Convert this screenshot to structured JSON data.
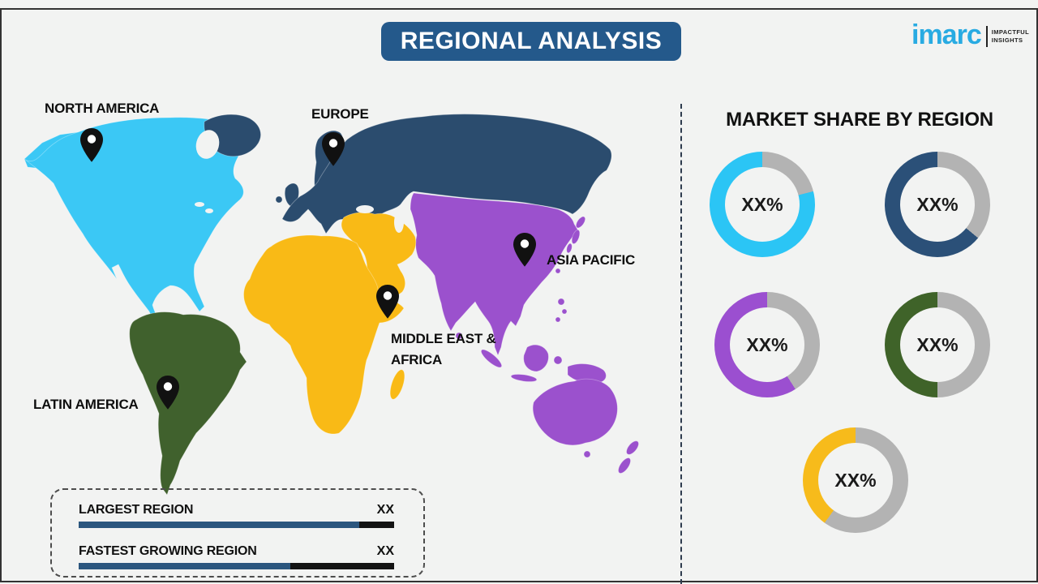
{
  "header": {
    "title": "REGIONAL ANALYSIS",
    "banner_color": "#24598b"
  },
  "logo": {
    "brand": "imarc",
    "tagline_line1": "IMPACTFUL",
    "tagline_line2": "INSIGHTS",
    "brand_color": "#29abe2"
  },
  "map": {
    "regions": [
      {
        "name": "North America",
        "label": "NORTH AMERICA",
        "color": "#3bc8f5"
      },
      {
        "name": "Europe",
        "label": "EUROPE",
        "color": "#2b4c6e"
      },
      {
        "name": "Asia Pacific",
        "label": "ASIA PACIFIC",
        "color": "#9b51cd"
      },
      {
        "name": "Middle East & Africa",
        "label_line1": "MIDDLE EAST &",
        "label_line2": "AFRICA",
        "color": "#f9ba16"
      },
      {
        "name": "Latin America",
        "label": "LATIN AMERICA",
        "color": "#40612d"
      }
    ]
  },
  "market_share": {
    "heading": "MARKET SHARE BY REGION",
    "gray": "#b3b3b3",
    "donuts": [
      {
        "region": "North America",
        "label": "XX%",
        "color": "#2bc5f5",
        "value_pct": 79
      },
      {
        "region": "Europe",
        "label": "XX%",
        "color": "#2b5078",
        "value_pct": 64
      },
      {
        "region": "Asia Pacific",
        "label": "XX%",
        "color": "#9b4fd0",
        "value_pct": 59
      },
      {
        "region": "Latin America",
        "label": "XX%",
        "color": "#3f6329",
        "value_pct": 50
      },
      {
        "region": "Middle East & Africa",
        "label": "XX%",
        "color": "#f7bb1b",
        "value_pct": 40
      }
    ]
  },
  "legend": {
    "rows": [
      {
        "label": "LARGEST REGION",
        "value": "XX",
        "fill_pct": 89
      },
      {
        "label": "FASTEST GROWING REGION",
        "value": "XX",
        "fill_pct": 67
      }
    ],
    "fill_color": "#2b567e",
    "track_color": "#131313"
  },
  "chart_data": [
    {
      "type": "pie",
      "title": "MARKET SHARE BY REGION",
      "legend_position": "none",
      "series": [
        {
          "name": "North America",
          "label": "XX%",
          "color": "#2bc5f5",
          "visual_share_pct": 79
        },
        {
          "name": "Europe",
          "label": "XX%",
          "color": "#2b5078",
          "visual_share_pct": 64
        },
        {
          "name": "Asia Pacific",
          "label": "XX%",
          "color": "#9b4fd0",
          "visual_share_pct": 59
        },
        {
          "name": "Latin America",
          "label": "XX%",
          "color": "#3f6329",
          "visual_share_pct": 50
        },
        {
          "name": "Middle East & Africa",
          "label": "XX%",
          "color": "#f7bb1b",
          "visual_share_pct": 40
        }
      ],
      "note": "Five separate donut gauges; gray remainder starts at 12 o'clock; all data labels are XX% placeholders"
    },
    {
      "type": "bar",
      "categories": [
        "LARGEST REGION",
        "FASTEST GROWING REGION"
      ],
      "values": [
        89,
        67
      ],
      "value_labels": [
        "XX",
        "XX"
      ],
      "note": "Horizontal indicator bars, navy fill over black track; values shown only as XX placeholders"
    }
  ]
}
